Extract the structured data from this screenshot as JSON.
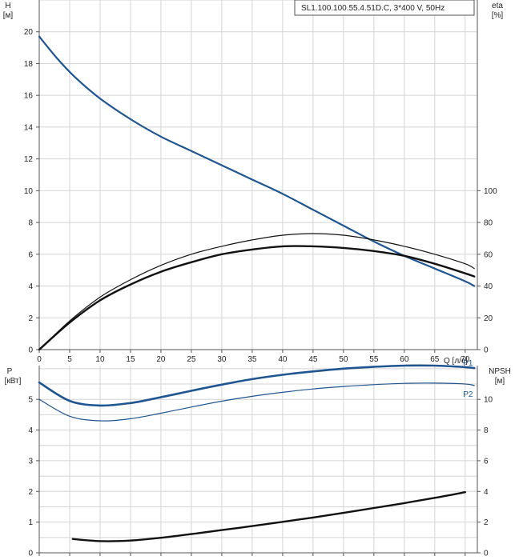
{
  "title": "SL1.100.100.55.4.51D.C, 3*400 V, 50Hz",
  "colors": {
    "blue": "#1f5591",
    "black": "#111111",
    "grid": "#d4d4d4",
    "frame": "#555555"
  },
  "chart_data": [
    {
      "type": "line",
      "panel": "top",
      "x_axis": {
        "label": "Q [л/с]",
        "range": [
          0,
          72
        ],
        "ticks": [
          "0",
          "5",
          "10",
          "15",
          "20",
          "25",
          "30",
          "35",
          "40",
          "45",
          "50",
          "55",
          "60",
          "65",
          "70"
        ]
      },
      "left_axis": {
        "label_line1": "H",
        "label_line2": "[м]",
        "range": [
          0,
          22
        ],
        "ticks": [
          "0",
          "2",
          "4",
          "6",
          "8",
          "10",
          "12",
          "14",
          "16",
          "18",
          "20"
        ]
      },
      "right_axis": {
        "label_line1": "eta",
        "label_line2": "[%]",
        "range": [
          0,
          220
        ],
        "ticks": [
          "0",
          "20",
          "40",
          "60",
          "80",
          "100"
        ]
      },
      "grid": true,
      "series": [
        {
          "axis": "left",
          "color": "blue",
          "width": 2.2,
          "x": [
            0,
            3,
            6,
            10,
            15,
            20,
            25,
            30,
            35,
            40,
            45,
            50,
            55,
            60,
            65,
            70,
            71.5
          ],
          "y": [
            19.7,
            18.3,
            17.1,
            15.8,
            14.5,
            13.4,
            12.5,
            11.6,
            10.7,
            9.8,
            8.8,
            7.8,
            6.8,
            5.9,
            5.1,
            4.3,
            4.0
          ]
        },
        {
          "axis": "right",
          "color": "black",
          "width": 1.2,
          "x": [
            0,
            5,
            10,
            15,
            20,
            25,
            30,
            35,
            40,
            45,
            50,
            55,
            60,
            65,
            70,
            71.5
          ],
          "y": [
            0,
            18,
            33,
            44,
            53,
            60,
            65,
            69,
            72,
            73,
            72,
            69,
            65,
            60,
            54,
            51
          ]
        },
        {
          "axis": "right",
          "color": "black",
          "width": 2.4,
          "x": [
            0,
            5,
            10,
            15,
            20,
            25,
            30,
            35,
            40,
            45,
            50,
            55,
            60,
            65,
            70,
            71.5
          ],
          "y": [
            0,
            17,
            31,
            41,
            49,
            55,
            60,
            63,
            65,
            65,
            64,
            62,
            59,
            54,
            48,
            46
          ]
        }
      ]
    },
    {
      "type": "line",
      "panel": "bottom",
      "x_axis": {
        "range": [
          0,
          72
        ]
      },
      "left_axis": {
        "label_line1": "P",
        "label_line2": "[кВт]",
        "range": [
          0,
          6.1
        ],
        "ticks": [
          "0",
          "1",
          "2",
          "3",
          "4",
          "5"
        ]
      },
      "right_axis": {
        "label_line1": "NPSH",
        "label_line2": "[м]",
        "range": [
          0,
          12.2
        ],
        "ticks": [
          "0",
          "2",
          "4",
          "6",
          "8",
          "10"
        ]
      },
      "grid": true,
      "series": [
        {
          "name": "P1",
          "axis": "left",
          "color": "blue",
          "width": 2.6,
          "x": [
            0,
            5,
            10,
            15,
            20,
            25,
            30,
            35,
            40,
            45,
            50,
            55,
            60,
            65,
            70,
            71.5
          ],
          "y": [
            5.55,
            4.95,
            4.8,
            4.88,
            5.07,
            5.28,
            5.48,
            5.66,
            5.8,
            5.91,
            6.0,
            6.06,
            6.1,
            6.1,
            6.05,
            6.02
          ]
        },
        {
          "name": "P2",
          "axis": "left",
          "color": "blue",
          "width": 1.2,
          "x": [
            0,
            5,
            10,
            15,
            20,
            25,
            30,
            35,
            40,
            45,
            50,
            55,
            60,
            65,
            70,
            71.5
          ],
          "y": [
            5.0,
            4.45,
            4.3,
            4.37,
            4.55,
            4.75,
            4.94,
            5.1,
            5.23,
            5.34,
            5.42,
            5.48,
            5.52,
            5.53,
            5.5,
            5.45
          ]
        },
        {
          "axis": "right",
          "color": "black",
          "width": 2.4,
          "x": [
            5.5,
            10,
            15,
            20,
            25,
            30,
            35,
            40,
            45,
            50,
            55,
            60,
            65,
            70
          ],
          "y": [
            0.9,
            0.76,
            0.8,
            0.98,
            1.22,
            1.48,
            1.74,
            2.02,
            2.3,
            2.6,
            2.92,
            3.24,
            3.58,
            3.95
          ]
        }
      ]
    }
  ]
}
